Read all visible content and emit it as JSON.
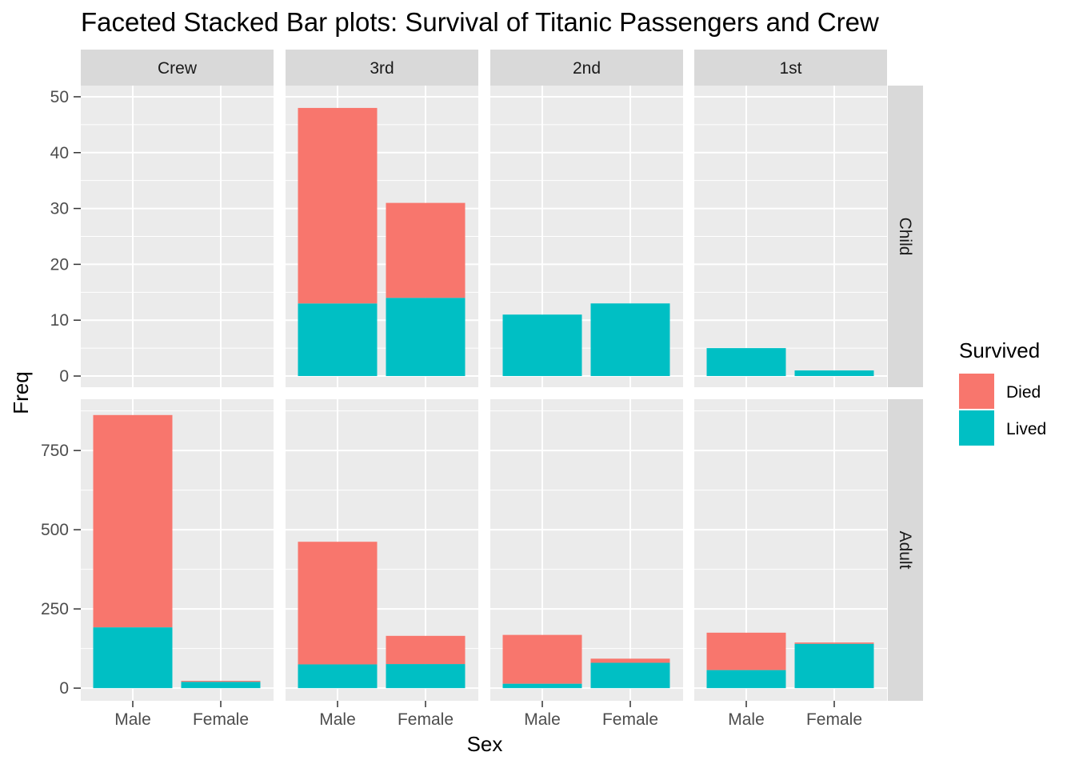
{
  "chart_data": {
    "type": "bar",
    "title": "Faceted Stacked Bar plots: Survival of Titanic Passengers and Crew",
    "xlabel": "Sex",
    "ylabel": "Freq",
    "categories": [
      "Male",
      "Female"
    ],
    "columns": [
      "Crew",
      "3rd",
      "2nd",
      "1st"
    ],
    "rows": [
      "Child",
      "Adult"
    ],
    "grid": true,
    "legend": {
      "title": "Survived",
      "placement": "right",
      "entries": [
        {
          "name": "Died",
          "color": "#F8766D"
        },
        {
          "name": "Lived",
          "color": "#00BFC4"
        }
      ]
    },
    "colors": {
      "Died": "#F8766D",
      "Lived": "#00BFC4",
      "panel_bg": "#EBEBEB",
      "strip_bg": "#D9D9D9",
      "grid": "#FFFFFF"
    },
    "row_axes": [
      {
        "row": "Child",
        "ylim": [
          -2,
          52
        ],
        "ticks": [
          0,
          10,
          20,
          30,
          40,
          50
        ],
        "tick_labels": [
          "0",
          "10",
          "20",
          "30",
          "40",
          "50"
        ]
      },
      {
        "row": "Adult",
        "ylim": [
          -40,
          912
        ],
        "ticks": [
          0,
          250,
          500,
          750
        ],
        "tick_labels": [
          "0",
          "250",
          "500",
          "750"
        ]
      }
    ],
    "panels": [
      {
        "row": "Child",
        "column": "Crew",
        "Male": {
          "Lived": 0,
          "Died": 0
        },
        "Female": {
          "Lived": 0,
          "Died": 0
        }
      },
      {
        "row": "Child",
        "column": "3rd",
        "Male": {
          "Lived": 13,
          "Died": 35
        },
        "Female": {
          "Lived": 14,
          "Died": 17
        }
      },
      {
        "row": "Child",
        "column": "2nd",
        "Male": {
          "Lived": 11,
          "Died": 0
        },
        "Female": {
          "Lived": 13,
          "Died": 0
        }
      },
      {
        "row": "Child",
        "column": "1st",
        "Male": {
          "Lived": 5,
          "Died": 0
        },
        "Female": {
          "Lived": 1,
          "Died": 0
        }
      },
      {
        "row": "Adult",
        "column": "Crew",
        "Male": {
          "Lived": 192,
          "Died": 670
        },
        "Female": {
          "Lived": 20,
          "Died": 3
        }
      },
      {
        "row": "Adult",
        "column": "3rd",
        "Male": {
          "Lived": 75,
          "Died": 387
        },
        "Female": {
          "Lived": 76,
          "Died": 89
        }
      },
      {
        "row": "Adult",
        "column": "2nd",
        "Male": {
          "Lived": 14,
          "Died": 154
        },
        "Female": {
          "Lived": 80,
          "Died": 13
        }
      },
      {
        "row": "Adult",
        "column": "1st",
        "Male": {
          "Lived": 57,
          "Died": 118
        },
        "Female": {
          "Lived": 140,
          "Died": 4
        }
      }
    ]
  }
}
